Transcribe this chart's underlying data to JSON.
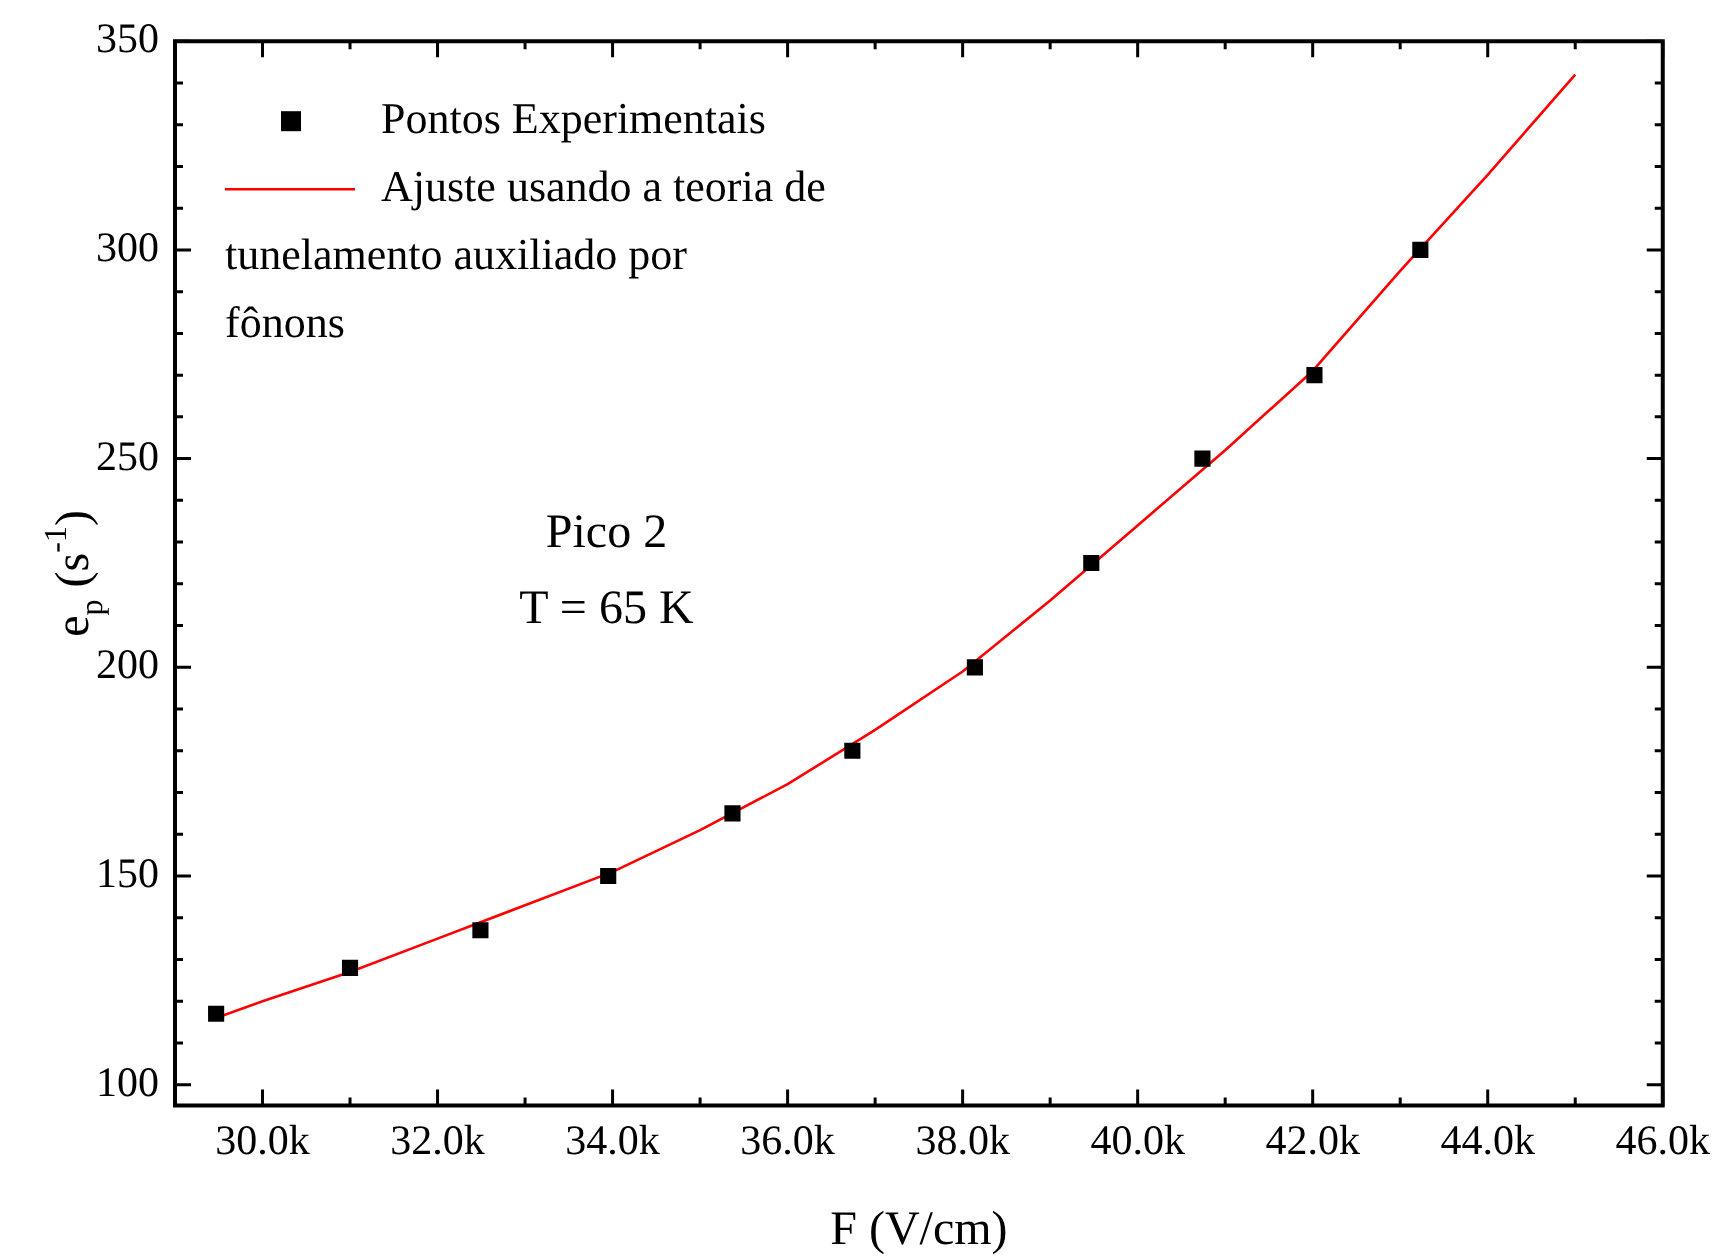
{
  "chart_data": {
    "type": "scatter",
    "xlabel": "F (V/cm)",
    "ylabel": "e$_{p}$ (s$^{-1}$)",
    "xlim": [
      29000,
      46000
    ],
    "xticks": [
      {
        "value": 30000,
        "label": "30.0k"
      },
      {
        "value": 32000,
        "label": "32.0k"
      },
      {
        "value": 34000,
        "label": "34.0k"
      },
      {
        "value": 36000,
        "label": "36.0k"
      },
      {
        "value": 38000,
        "label": "38.0k"
      },
      {
        "value": 40000,
        "label": "40.0k"
      },
      {
        "value": 42000,
        "label": "42.0k"
      },
      {
        "value": 44000,
        "label": "44.0k"
      },
      {
        "value": 46000,
        "label": "46.0k"
      }
    ],
    "ylim": [
      95,
      350
    ],
    "yticks": [
      100,
      150,
      200,
      250,
      300,
      350
    ],
    "grid": false,
    "legend": "top left",
    "annotations": [
      "Pico 2",
      "T = 65 K"
    ],
    "series": [
      {
        "name": "Pontos Experimentais",
        "color": "#000000",
        "marker": "square",
        "x": [
          29470,
          31000,
          32490,
          33950,
          35370,
          36740,
          38140,
          39470,
          40740,
          42020,
          43230
        ],
        "values": [
          117,
          128,
          137,
          150,
          165,
          180,
          200,
          225,
          250,
          270,
          300
        ]
      },
      {
        "name": "Ajuste usando a teoria de tunelamento auxiliado por fônons",
        "type": "line",
        "color": "#ff0000",
        "marker": "none",
        "line_style": "solid",
        "x": [
          29470,
          30000,
          31000,
          32000,
          33000,
          34000,
          35000,
          36000,
          37000,
          38000,
          39000,
          40000,
          41000,
          42000,
          43000,
          44000,
          45000
        ],
        "values": [
          116,
          120,
          127,
          135,
          143,
          151,
          161,
          172,
          185,
          199,
          216,
          234,
          252,
          271,
          295,
          318,
          342
        ]
      }
    ]
  }
}
